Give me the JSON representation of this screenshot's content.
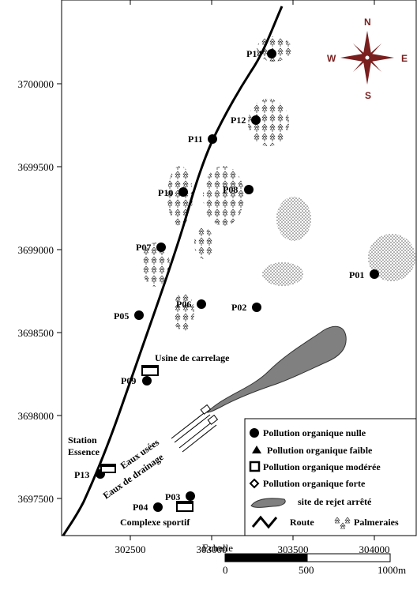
{
  "axes": {
    "y_ticks": [
      "3700000",
      "3699500",
      "3699000",
      "3698500",
      "3698000",
      "3697500"
    ],
    "x_ticks": [
      "302500",
      "303000",
      "303500",
      "304000"
    ]
  },
  "compass": {
    "n": "N",
    "s": "S",
    "e": "E",
    "w": "W"
  },
  "stations": [
    {
      "id": "P14",
      "type": "circle"
    },
    {
      "id": "P12",
      "type": "circle"
    },
    {
      "id": "P11",
      "type": "circle"
    },
    {
      "id": "P10",
      "type": "circle"
    },
    {
      "id": "P08",
      "type": "circle"
    },
    {
      "id": "P07",
      "type": "circle"
    },
    {
      "id": "P06",
      "type": "circle"
    },
    {
      "id": "P02",
      "type": "circle"
    },
    {
      "id": "P05",
      "type": "circle"
    },
    {
      "id": "P01",
      "type": "circle"
    },
    {
      "id": "P09",
      "type": "circle"
    },
    {
      "id": "P13",
      "type": "circle"
    },
    {
      "id": "P03",
      "type": "circle"
    },
    {
      "id": "P04",
      "type": "circle"
    }
  ],
  "places": {
    "usine": "Usine de carrelage",
    "station_line1": "Station",
    "station_line2": "Essence",
    "complexe": "Complexe sportif",
    "eaux_usees": "Eaux usées",
    "eaux_drainage": "Eaux de drainage"
  },
  "legend": {
    "nulle": "Pollution organique nulle",
    "faible": "Pollution organique faible",
    "moderee": "Pollution organique modérée",
    "forte": "Pollution organique forte",
    "rejet": "site de rejet arrêté",
    "route": "Route",
    "palmeraies": "Palmeraies"
  },
  "scale": {
    "title": "Echelle",
    "labels": [
      "0",
      "500",
      "1000m"
    ]
  },
  "colors": {
    "discharge_site": "#808080",
    "compass": "#7a1e1e"
  }
}
